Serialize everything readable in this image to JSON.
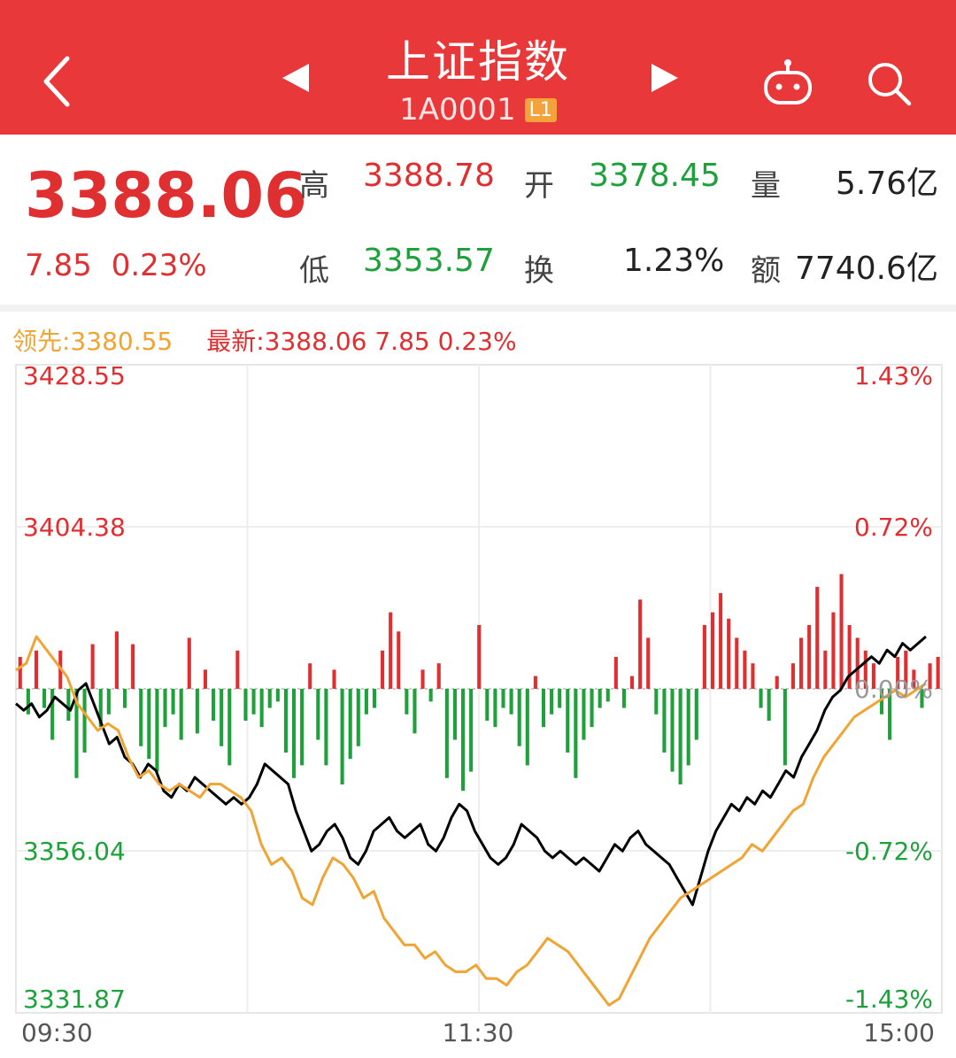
{
  "header": {
    "title": "上证指数",
    "code": "1A0001",
    "level_badge": "L1"
  },
  "quote": {
    "price": "3388.06",
    "change": "7.85",
    "change_pct": "0.23%",
    "high_label": "高",
    "high": "3388.78",
    "open_label": "开",
    "open": "3378.45",
    "volume_label": "量",
    "volume": "5.76亿",
    "low_label": "低",
    "low": "3353.57",
    "turnover_label": "换",
    "turnover": "1.23%",
    "amount_label": "额",
    "amount": "7740.6亿"
  },
  "legend": {
    "leader": "领先:3380.55",
    "latest": "最新:3388.06  7.85  0.23%"
  },
  "colors": {
    "brand": "#e8383a",
    "up": "#e02f31",
    "down": "#1ea03a",
    "price_line": "#000000",
    "leader_line": "#f0a433"
  },
  "chart_data": {
    "type": "line",
    "title": "",
    "prev_close": 3380.21,
    "ylim": [
      3331.87,
      3428.55
    ],
    "y_ticks_left": [
      "3428.55",
      "3404.38",
      "3356.04",
      "3331.87"
    ],
    "y_ticks_right": [
      "1.43%",
      "0.72%",
      "0.00%",
      "-0.72%",
      "-1.43%"
    ],
    "x_ticks": [
      "09:30",
      "11:30",
      "15:00"
    ],
    "grid": true,
    "series": [
      {
        "name": "最新",
        "values": [
          3378,
          3377,
          3378,
          3376,
          3377,
          3379,
          3378,
          3377,
          3380,
          3381,
          3378,
          3375,
          3372,
          3373,
          3370,
          3369,
          3367,
          3369,
          3368,
          3365,
          3364,
          3366,
          3365,
          3367,
          3366,
          3365,
          3364,
          3363,
          3364,
          3363,
          3364,
          3366,
          3369,
          3368,
          3367,
          3366,
          3362,
          3359,
          3356,
          3357,
          3359,
          3360,
          3358,
          3355,
          3354,
          3356,
          3359,
          3360,
          3361,
          3359,
          3358,
          3359,
          3360,
          3357,
          3356,
          3358,
          3361,
          3363,
          3362,
          3359,
          3357,
          3355,
          3354,
          3355,
          3357,
          3360,
          3359,
          3358,
          3356,
          3355,
          3356,
          3355,
          3354,
          3355,
          3354,
          3353,
          3355,
          3357,
          3356,
          3358,
          3359,
          3357,
          3356,
          3355,
          3354,
          3352,
          3350,
          3348,
          3352,
          3356,
          3359,
          3361,
          3363,
          3362,
          3364,
          3363,
          3365,
          3364,
          3366,
          3368,
          3367,
          3370,
          3372,
          3374,
          3377,
          3379,
          3380,
          3382,
          3383,
          3384,
          3385,
          3384,
          3386,
          3385,
          3387,
          3386,
          3387,
          3388
        ]
      },
      {
        "name": "领先",
        "values": [
          3383,
          3384,
          3388,
          3386,
          3384,
          3382,
          3378,
          3376,
          3374,
          3375,
          3374,
          3370,
          3367,
          3368,
          3366,
          3365,
          3366,
          3365,
          3364,
          3366,
          3366,
          3365,
          3364,
          3362,
          3357,
          3354,
          3355,
          3353,
          3349,
          3348,
          3352,
          3355,
          3354,
          3352,
          3349,
          3350,
          3346,
          3344,
          3342,
          3342,
          3340,
          3341,
          3339,
          3338,
          3338,
          3339,
          3337,
          3337,
          3336,
          3338,
          3339,
          3341,
          3343,
          3342,
          3341,
          3339,
          3337,
          3335,
          3333,
          3334,
          3337,
          3340,
          3343,
          3345,
          3347,
          3349,
          3350,
          3351,
          3352,
          3353,
          3354,
          3355,
          3357,
          3356,
          3358,
          3360,
          3362,
          3363,
          3367,
          3370,
          3372,
          3374,
          3376,
          3377,
          3378,
          3379,
          3380,
          3379,
          3380,
          3381
        ]
      }
    ],
    "volume_bars": {
      "description_units": "relative",
      "values": [
        5,
        -4,
        6,
        -3,
        -8,
        6,
        -5,
        -14,
        -10,
        7,
        -6,
        -4,
        9,
        -3,
        7,
        -9,
        -11,
        -13,
        -6,
        -4,
        -8,
        8,
        -7,
        3,
        -5,
        -9,
        -12,
        6,
        -5,
        -4,
        -6,
        -3,
        -2,
        -10,
        -14,
        -12,
        4,
        -8,
        -12,
        3,
        -15,
        -11,
        -9,
        -4,
        -3,
        6,
        12,
        9,
        -4,
        -7,
        3,
        -2,
        4,
        -14,
        -8,
        -16,
        -13,
        10,
        -5,
        -6,
        -3,
        -4,
        -9,
        -12,
        2,
        -6,
        -4,
        -3,
        -10,
        -14,
        -8,
        -6,
        -3,
        -2,
        5,
        -3,
        2,
        14,
        8,
        -4,
        -10,
        -13,
        -15,
        -12,
        -8,
        10,
        12,
        15,
        11,
        8,
        6,
        4,
        -3,
        -5,
        2,
        -12,
        4,
        8,
        10,
        16,
        6,
        12,
        18,
        10,
        8,
        6,
        4,
        -4,
        -8,
        5,
        6,
        3,
        -3,
        4,
        5
      ]
    }
  }
}
